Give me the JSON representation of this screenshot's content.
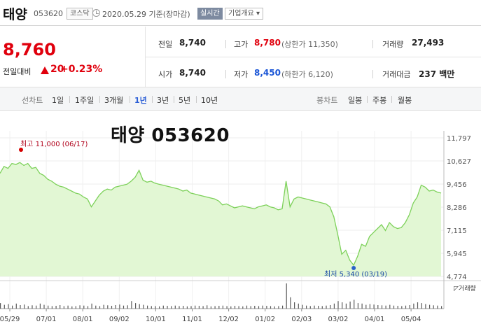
{
  "header": {
    "name": "태양",
    "code": "053620",
    "market": "코스닥",
    "date": "2020.05.29  기준(장마감)",
    "realtime_label": "실시간",
    "company_label": "기업개요 ▾"
  },
  "price": {
    "current": "8,760",
    "change_label": "전일대비",
    "change_value": "20",
    "change_rate": "+0.23%"
  },
  "stats": {
    "prev_close_label": "전일",
    "prev_close": "8,740",
    "high_label": "고가",
    "high": "8,780",
    "upper_limit": "(상한가 11,350)",
    "volume_label": "거래량",
    "volume": "27,493",
    "open_label": "시가",
    "open": "8,740",
    "low_label": "저가",
    "low": "8,450",
    "lower_limit": "(하한가 6,120)",
    "amount_label": "거래대금",
    "amount": "237 백만"
  },
  "tabs": {
    "line_chart_label": "선차트",
    "periods": [
      "1일",
      "1주일",
      "3개월",
      "1년",
      "3년",
      "5년",
      "10년"
    ],
    "active_period": "1년",
    "candle_chart_label": "봉차트",
    "candles": [
      "일봉",
      "주봉",
      "월봉"
    ]
  },
  "chart": {
    "title": "태양 053620",
    "high_label": "최고 11,000 (06/17)",
    "low_label": "최저 5,340 (03/19)",
    "volume_label": "◸거래량",
    "line_color": "#7dd15a",
    "fill_color": "#e2f7d4",
    "hi_marker_color": "#d40000",
    "lo_marker_color": "#2a62c9"
  },
  "chart_data": {
    "type": "area",
    "y_ticks": [
      "11,797",
      "10,627",
      "9,456",
      "8,286",
      "7,115",
      "5,945",
      "4,774"
    ],
    "ylim": [
      4774,
      11797
    ],
    "x_ticks": [
      "05/29",
      "07/01",
      "08/01",
      "09/02",
      "10/01",
      "11/01",
      "12/02",
      "01/02",
      "02/03",
      "03/02",
      "04/01",
      "05/04"
    ],
    "series": [
      {
        "values": [
          10000,
          10350,
          10250,
          10500,
          10450,
          10550,
          10400,
          10500,
          10250,
          10300,
          10000,
          9900,
          9700,
          9600,
          9450,
          9350,
          9300,
          9200,
          9100,
          9000,
          8950,
          8800,
          8700,
          8300,
          8600,
          8900,
          9100,
          9200,
          9150,
          9300,
          9350,
          9400,
          9450,
          9600,
          9800,
          10150,
          9650,
          9550,
          9600,
          9500,
          9450,
          9400,
          9350,
          9300,
          9250,
          9200,
          9100,
          9150,
          9000,
          8950,
          8900,
          8850,
          8800,
          8750,
          8700,
          8600,
          8400,
          8450,
          8350,
          8250,
          8300,
          8350,
          8300,
          8250,
          8200,
          8300,
          8350,
          8400,
          8300,
          8250,
          8150,
          8200,
          9600,
          8300,
          8700,
          8800,
          8750,
          8700,
          8650,
          8600,
          8550,
          8500,
          8450,
          8300,
          7800,
          6900,
          5900,
          6100,
          5600,
          5340,
          5800,
          6400,
          6300,
          6800,
          7000,
          7200,
          7400,
          7100,
          7500,
          7300,
          7200,
          7250,
          7500,
          7900,
          8500,
          8800,
          9400,
          9300,
          9100,
          9150,
          9050,
          9000
        ]
      }
    ],
    "volume": [
      0.22,
      0.15,
      0.18,
      0.12,
      0.2,
      0.14,
      0.16,
      0.1,
      0.13,
      0.12,
      0.2,
      0.15,
      0.12,
      0.1,
      0.11,
      0.14,
      0.1,
      0.12,
      0.09,
      0.1,
      0.13,
      0.12,
      0.1,
      0.2,
      0.12,
      0.1,
      0.15,
      0.13,
      0.11,
      0.14,
      0.16,
      0.12,
      0.13,
      0.3,
      0.22,
      0.18,
      0.15,
      0.12,
      0.1,
      0.1,
      0.09,
      0.12,
      0.11,
      0.1,
      0.12,
      0.1,
      0.11,
      0.09,
      0.1,
      0.12,
      0.11,
      0.1,
      0.13,
      0.09,
      0.1,
      0.11,
      0.12,
      0.1,
      0.09,
      0.11,
      0.1,
      0.09,
      0.12,
      0.1,
      0.11,
      0.1,
      0.12,
      0.11,
      0.1,
      0.09,
      0.1,
      0.12,
      1.0,
      0.45,
      0.25,
      0.2,
      0.15,
      0.12,
      0.1,
      0.12,
      0.11,
      0.1,
      0.12,
      0.14,
      0.2,
      0.3,
      0.25,
      0.2,
      0.28,
      0.35,
      0.22,
      0.2,
      0.15,
      0.18,
      0.16,
      0.14,
      0.13,
      0.12,
      0.15,
      0.12,
      0.11,
      0.1,
      0.12,
      0.14,
      0.2,
      0.25,
      0.22,
      0.18,
      0.15,
      0.13,
      0.12,
      0.1
    ],
    "grid": true
  }
}
